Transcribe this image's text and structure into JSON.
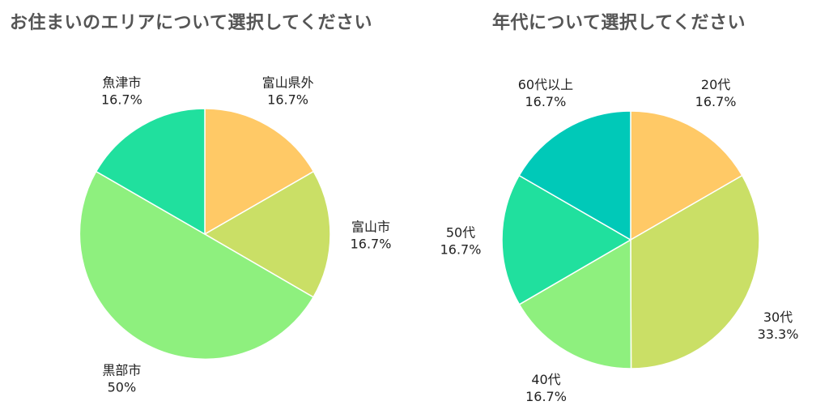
{
  "chart_data": [
    {
      "type": "pie",
      "title": "お住まいのエリアについて選択してください",
      "labels": [
        "富山県外",
        "富山市",
        "黒部市",
        "魚津市"
      ],
      "values": [
        16.7,
        16.7,
        50,
        16.7
      ],
      "value_labels": [
        "16.7%",
        "16.7%",
        "50%",
        "16.7%"
      ],
      "colors": [
        "#FFC966",
        "#CADF66",
        "#8EF07E",
        "#20E09E"
      ],
      "start_angle": 0,
      "direction": "clockwise",
      "legend": "none"
    },
    {
      "type": "pie",
      "title": "年代について選択してください",
      "labels": [
        "20代",
        "30代",
        "40代",
        "50代",
        "60代以上"
      ],
      "values": [
        16.7,
        33.3,
        16.7,
        16.7,
        16.7
      ],
      "value_labels": [
        "16.7%",
        "33.3%",
        "16.7%",
        "16.7%",
        "16.7%"
      ],
      "colors": [
        "#FFC966",
        "#CADF66",
        "#8EF07E",
        "#20E09E",
        "#00C9B8"
      ],
      "start_angle": 0,
      "direction": "clockwise",
      "legend": "none"
    }
  ]
}
